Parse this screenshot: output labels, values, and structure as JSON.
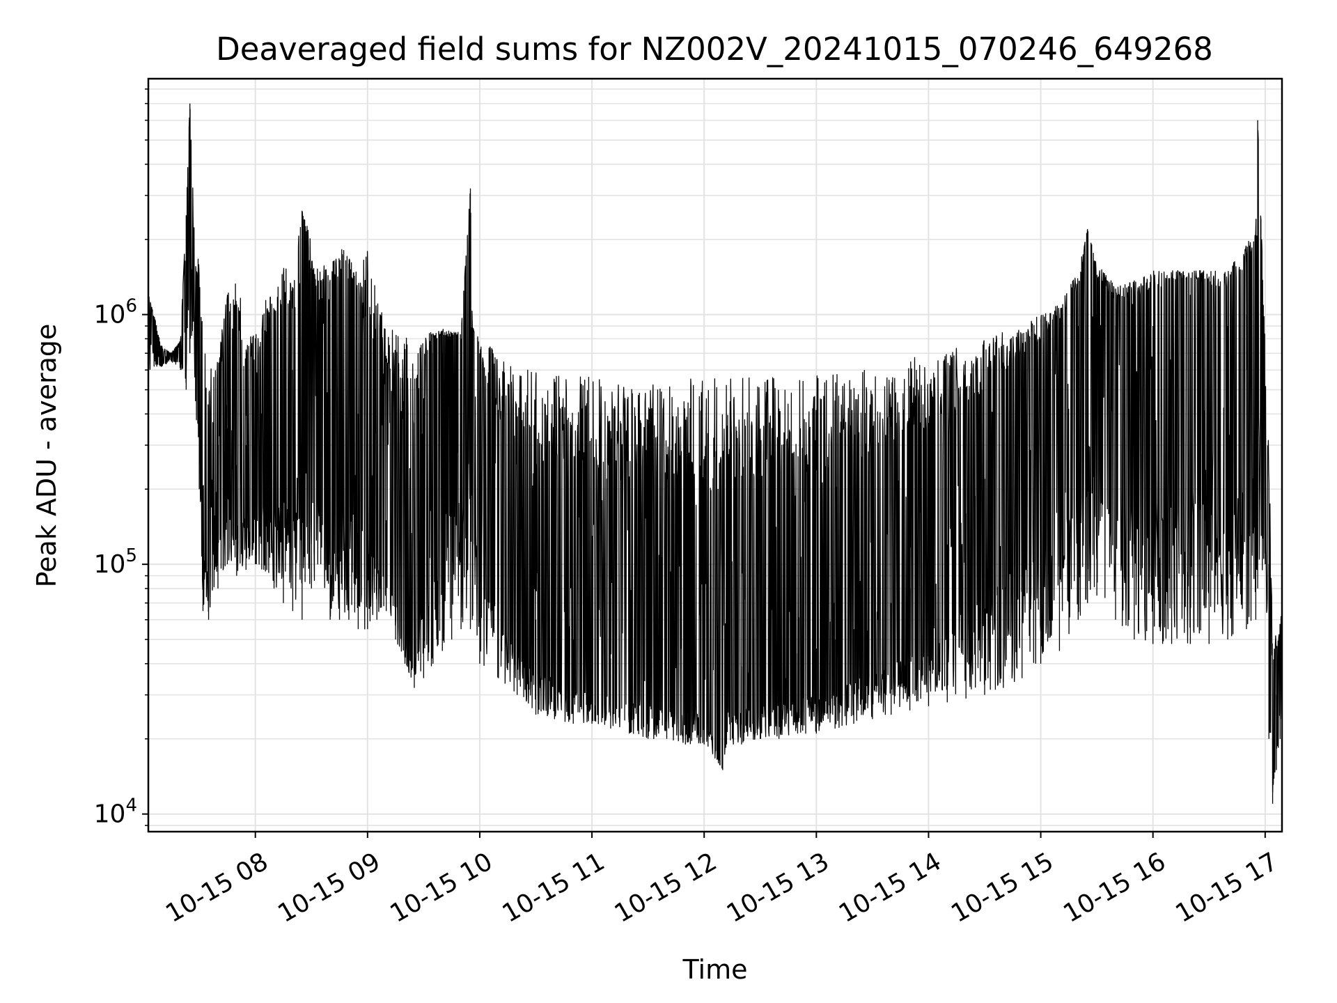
{
  "chart_data": {
    "type": "line",
    "title": "Deaveraged field sums for NZ002V_20241015_070246_649268",
    "xlabel": "Time",
    "ylabel": "Peak ADU - average",
    "y_scale": "log",
    "ylim": [
      8500,
      8800000
    ],
    "xlim": [
      "2024-10-15T07:02:46",
      "2024-10-15T17:09:00"
    ],
    "grid": true,
    "line_color": "#000000",
    "grid_color": "#e3e3e3",
    "x_ticks": [
      {
        "t": "2024-10-15T08:00",
        "label": "10-15 08"
      },
      {
        "t": "2024-10-15T09:00",
        "label": "10-15 09"
      },
      {
        "t": "2024-10-15T10:00",
        "label": "10-15 10"
      },
      {
        "t": "2024-10-15T11:00",
        "label": "10-15 11"
      },
      {
        "t": "2024-10-15T12:00",
        "label": "10-15 12"
      },
      {
        "t": "2024-10-15T13:00",
        "label": "10-15 13"
      },
      {
        "t": "2024-10-15T14:00",
        "label": "10-15 14"
      },
      {
        "t": "2024-10-15T15:00",
        "label": "10-15 15"
      },
      {
        "t": "2024-10-15T16:00",
        "label": "10-15 16"
      },
      {
        "t": "2024-10-15T17:00",
        "label": "10-15 17"
      }
    ],
    "y_ticks": [
      {
        "value": 10000,
        "base": "10",
        "exp": "4"
      },
      {
        "value": 100000,
        "base": "10",
        "exp": "5"
      },
      {
        "value": 1000000,
        "base": "10",
        "exp": "6"
      }
    ],
    "series": [
      {
        "x": [
          "07:03",
          "07:10",
          "07:15",
          "07:20",
          "07:23",
          "07:25",
          "07:28",
          "07:30",
          "07:32",
          "07:35",
          "07:40",
          "07:45",
          "07:50",
          "07:55",
          "08:00",
          "08:10",
          "08:15",
          "08:20",
          "08:25",
          "08:30",
          "08:35",
          "08:40",
          "08:45",
          "08:50",
          "08:55",
          "09:00",
          "09:05",
          "09:10",
          "09:15",
          "09:20",
          "09:25",
          "09:30",
          "09:35",
          "09:40",
          "09:45",
          "09:50",
          "09:55",
          "09:56",
          "10:00",
          "10:10",
          "10:20",
          "10:30",
          "10:40",
          "10:50",
          "11:00",
          "11:10",
          "11:20",
          "11:30",
          "11:40",
          "11:50",
          "12:00",
          "12:10",
          "12:12",
          "12:20",
          "12:30",
          "12:40",
          "12:50",
          "13:00",
          "13:10",
          "13:20",
          "13:30",
          "13:40",
          "13:50",
          "14:00",
          "14:10",
          "14:20",
          "14:30",
          "14:40",
          "14:50",
          "15:00",
          "15:10",
          "15:20",
          "15:25",
          "15:30",
          "15:40",
          "15:50",
          "16:00",
          "16:10",
          "16:20",
          "16:30",
          "16:40",
          "16:50",
          "16:55",
          "16:56",
          "17:00",
          "17:02",
          "17:04",
          "17:06",
          "17:08",
          "17:09"
        ],
        "y": [
          1100000,
          650000,
          700000,
          800000,
          2500000,
          7000000,
          1000000,
          700000,
          200000,
          180000,
          300000,
          350000,
          250000,
          300000,
          350000,
          400000,
          600000,
          600000,
          2600000,
          700000,
          600000,
          500000,
          900000,
          1600000,
          400000,
          300000,
          200000,
          150000,
          120000,
          60000,
          45000,
          400000,
          700000,
          700000,
          750000,
          800000,
          3200000,
          700000,
          500000,
          120000,
          80000,
          60000,
          55000,
          50000,
          45000,
          42000,
          40000,
          40000,
          38000,
          37000,
          36000,
          15000,
          38000,
          39000,
          40000,
          42000,
          44000,
          46000,
          50000,
          55000,
          60000,
          70000,
          80000,
          90000,
          120000,
          160000,
          220000,
          300000,
          400000,
          500000,
          700000,
          900000,
          2200000,
          1000000,
          900000,
          800000,
          900000,
          1000000,
          1200000,
          1000000,
          900000,
          1000000,
          1500000,
          6000000,
          300000,
          100000,
          20000,
          30000,
          45000,
          55000
        ],
        "envelope_high": [
          1200000,
          750000,
          700000,
          780000,
          2500000,
          7000000,
          1700000,
          1800000,
          800000,
          600000,
          700000,
          1200000,
          1500000,
          800000,
          900000,
          1400000,
          1600000,
          1400000,
          2600000,
          2000000,
          1500000,
          1700000,
          1900000,
          1700000,
          1500000,
          1900000,
          1200000,
          900000,
          850000,
          850000,
          850000,
          850000,
          850000,
          880000,
          850000,
          850000,
          3200000,
          900000,
          800000,
          700000,
          640000,
          620000,
          600000,
          580000,
          570000,
          570000,
          560000,
          560000,
          560000,
          560000,
          560000,
          560000,
          560000,
          560000,
          560000,
          560000,
          560000,
          570000,
          580000,
          600000,
          620000,
          650000,
          680000,
          700000,
          730000,
          760000,
          800000,
          850000,
          900000,
          1000000,
          1100000,
          1500000,
          2200000,
          1600000,
          1300000,
          1400000,
          1500000,
          1500000,
          1500000,
          1500000,
          1500000,
          1900000,
          2200000,
          6000000,
          800000,
          300000,
          60000,
          50000,
          60000,
          70000
        ],
        "envelope_low": [
          600000,
          620000,
          650000,
          600000,
          500000,
          700000,
          450000,
          200000,
          65000,
          60000,
          80000,
          100000,
          90000,
          95000,
          100000,
          80000,
          70000,
          65000,
          60000,
          80000,
          100000,
          60000,
          60000,
          60000,
          55000,
          55000,
          60000,
          65000,
          50000,
          40000,
          32000,
          35000,
          40000,
          45000,
          50000,
          55000,
          55000,
          60000,
          40000,
          35000,
          30000,
          25000,
          24000,
          23000,
          23000,
          22000,
          21000,
          20000,
          20000,
          19000,
          19000,
          15000,
          19000,
          19000,
          20000,
          20000,
          21000,
          21000,
          22000,
          23000,
          24000,
          25000,
          26000,
          27000,
          28000,
          29000,
          30000,
          32000,
          35000,
          40000,
          45000,
          60000,
          70000,
          75000,
          60000,
          50000,
          48000,
          48000,
          48000,
          48000,
          50000,
          55000,
          60000,
          80000,
          100000,
          20000,
          11000,
          15000,
          20000,
          25000
        ]
      }
    ]
  }
}
